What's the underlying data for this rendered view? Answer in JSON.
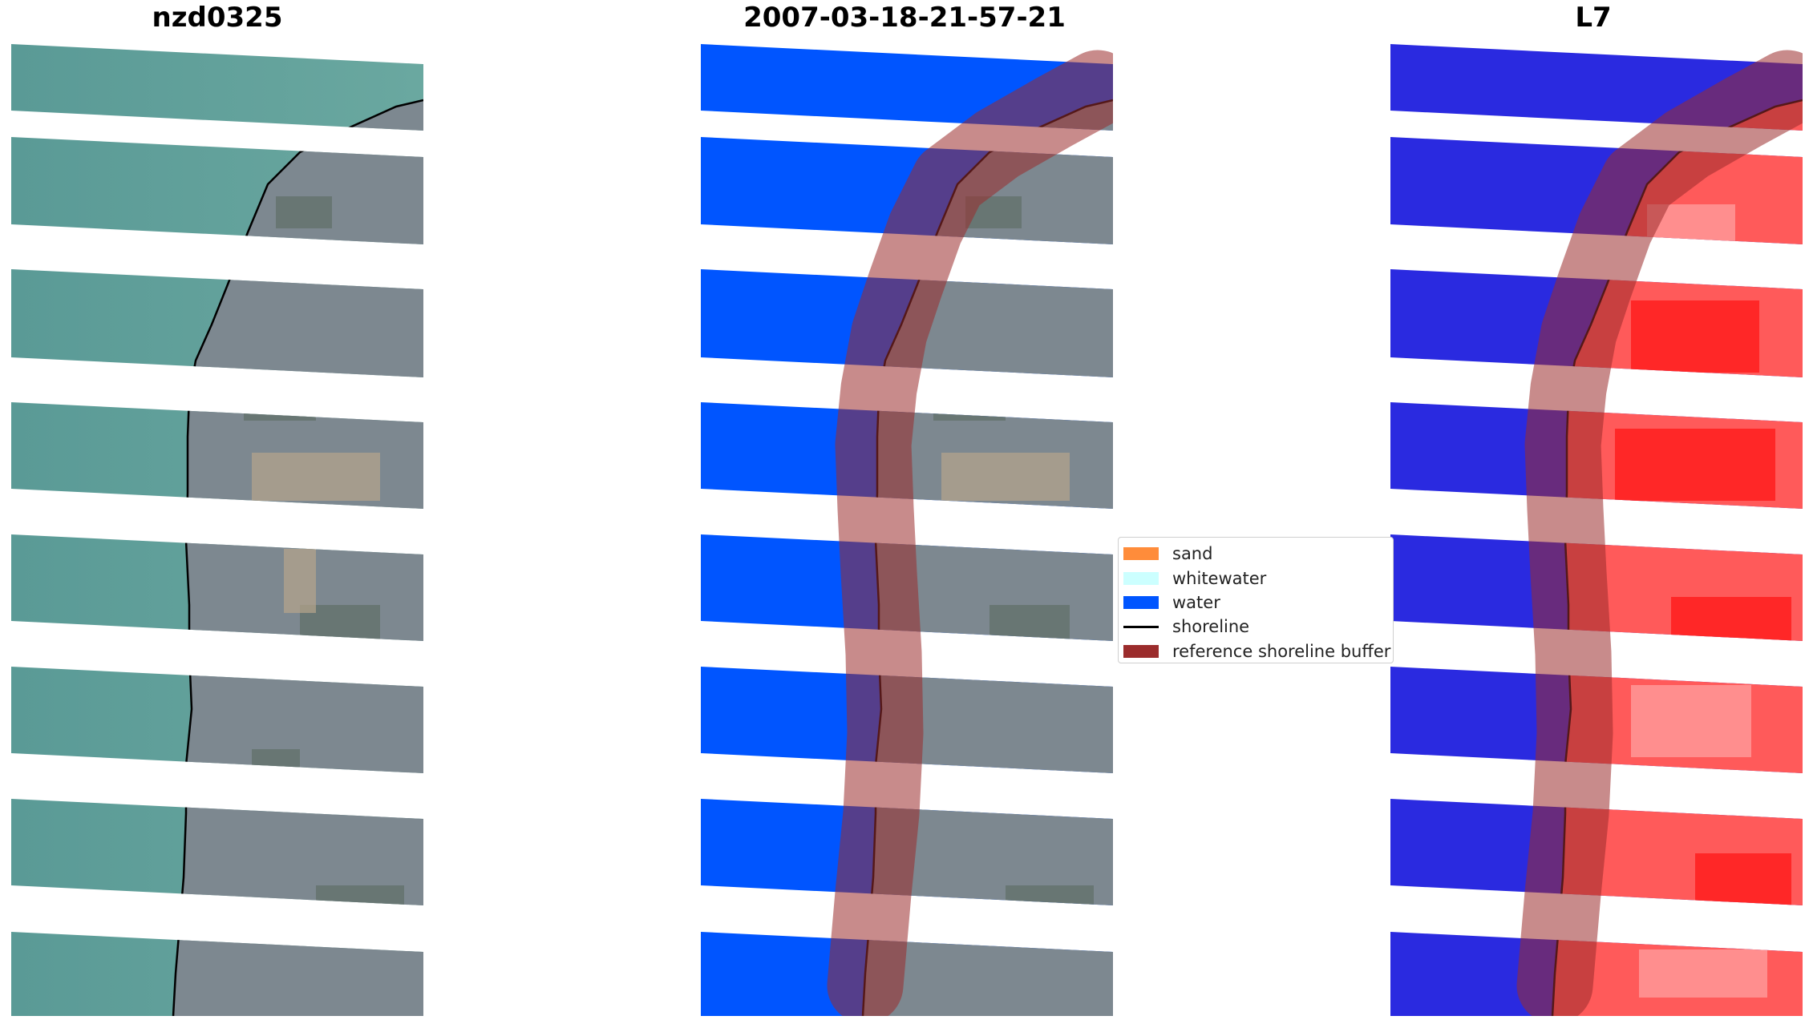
{
  "panels": [
    {
      "title": "nzd0325",
      "kind": "rgb"
    },
    {
      "title": "2007-03-18-21-57-21",
      "kind": "classified"
    },
    {
      "title": "L7",
      "kind": "mndwi"
    }
  ],
  "legend": {
    "items": [
      {
        "label": "sand",
        "type": "patch",
        "color": "#ff8c3a"
      },
      {
        "label": "whitewater",
        "type": "patch",
        "color": "#ccffff"
      },
      {
        "label": "water",
        "type": "patch",
        "color": "#0055ff"
      },
      {
        "label": "shoreline",
        "type": "line",
        "color": "#000000"
      },
      {
        "label": "reference shoreline buffer",
        "type": "patch",
        "color": "#9b2c2c"
      }
    ]
  },
  "colors": {
    "sea_rgb": "#4e9a98",
    "land_rgb": "#7c8790",
    "water_class": "#0055ff",
    "water_index": "#2626e6",
    "land_index": "#ff4d4d",
    "buffer": "#9b2c2c"
  }
}
